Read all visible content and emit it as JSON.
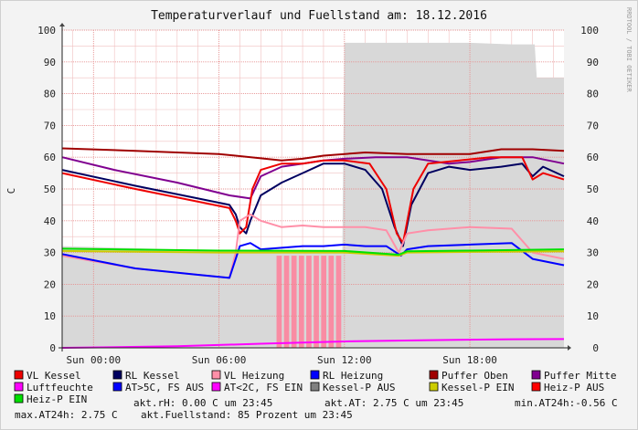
{
  "chart_data": {
    "type": "line",
    "title": "Temperaturverlauf und Fuellstand am: 18.12.2016",
    "ylabel": "C",
    "ylim": [
      0,
      100
    ],
    "yticks": [
      0,
      10,
      20,
      30,
      40,
      50,
      60,
      70,
      80,
      90,
      100
    ],
    "right_yticks": [
      0,
      10,
      20,
      30,
      40,
      50,
      60,
      70,
      80,
      90,
      100
    ],
    "xlim": [
      -1.5,
      22.5
    ],
    "xticks": [
      {
        "at": 0,
        "label": "Sun 00:00"
      },
      {
        "at": 6,
        "label": "Sun 06:00"
      },
      {
        "at": 12,
        "label": "Sun 12:00"
      },
      {
        "at": 18,
        "label": "Sun 18:00"
      }
    ],
    "side_label": "RRDTOOL / TOBI OETIKER",
    "grid": true,
    "fuellstand_area": {
      "name": "akt.Fuellstand",
      "color": "#d8d8d8",
      "points": [
        [
          -1.5,
          32
        ],
        [
          4,
          31
        ],
        [
          6.5,
          30
        ],
        [
          10,
          30
        ],
        [
          11.9,
          30
        ],
        [
          12,
          96
        ],
        [
          14,
          96
        ],
        [
          16,
          96
        ],
        [
          18,
          96
        ],
        [
          20,
          95.5
        ],
        [
          21.1,
          95.5
        ],
        [
          21.2,
          85
        ],
        [
          22.5,
          85
        ]
      ]
    },
    "kessel_pulses": {
      "color": "#ff7f9a",
      "start": 8.7,
      "end": 11.9,
      "top": 29,
      "count": 9
    },
    "series": [
      {
        "name": "Puffer Oben",
        "color": "#a00000",
        "points": [
          [
            -1.5,
            62.8
          ],
          [
            2,
            62
          ],
          [
            6,
            61
          ],
          [
            9,
            59
          ],
          [
            10,
            59.5
          ],
          [
            11,
            60.5
          ],
          [
            13,
            61.5
          ],
          [
            15,
            61
          ],
          [
            18,
            61
          ],
          [
            19.5,
            62.5
          ],
          [
            21,
            62.5
          ],
          [
            22.5,
            62
          ]
        ]
      },
      {
        "name": "Puffer Mitte",
        "color": "#800090",
        "points": [
          [
            -1.5,
            60
          ],
          [
            1,
            56
          ],
          [
            4,
            52
          ],
          [
            6.5,
            48
          ],
          [
            7.5,
            47
          ],
          [
            8,
            54
          ],
          [
            9,
            57
          ],
          [
            10,
            58
          ],
          [
            11,
            59
          ],
          [
            12,
            59.5
          ],
          [
            13.5,
            60
          ],
          [
            15,
            60
          ],
          [
            16,
            59
          ],
          [
            17,
            58
          ],
          [
            18,
            58.5
          ],
          [
            19.5,
            60
          ],
          [
            21,
            60
          ],
          [
            22.5,
            58
          ]
        ]
      },
      {
        "name": "RL Kessel",
        "color": "#000060",
        "points": [
          [
            -1.5,
            56
          ],
          [
            2,
            51
          ],
          [
            5,
            47
          ],
          [
            6.5,
            45
          ],
          [
            6.8,
            42
          ],
          [
            7,
            38
          ],
          [
            7.3,
            36
          ],
          [
            7.5,
            40
          ],
          [
            8,
            48
          ],
          [
            9,
            52
          ],
          [
            10,
            55
          ],
          [
            11,
            58
          ],
          [
            12,
            58
          ],
          [
            13,
            56
          ],
          [
            13.8,
            50
          ],
          [
            14.4,
            38
          ],
          [
            14.8,
            32
          ],
          [
            15.2,
            45
          ],
          [
            16,
            55
          ],
          [
            17,
            57
          ],
          [
            18,
            56
          ],
          [
            19.5,
            57
          ],
          [
            20.5,
            58
          ],
          [
            21,
            54
          ],
          [
            21.5,
            57
          ],
          [
            22.5,
            54
          ]
        ]
      },
      {
        "name": "VL Kessel",
        "color": "#ee0000",
        "points": [
          [
            -1.5,
            55
          ],
          [
            2,
            50
          ],
          [
            5,
            46
          ],
          [
            6.5,
            44
          ],
          [
            6.8,
            40
          ],
          [
            7,
            36
          ],
          [
            7.3,
            38
          ],
          [
            7.6,
            50
          ],
          [
            8,
            56
          ],
          [
            9,
            58
          ],
          [
            10,
            58
          ],
          [
            11,
            59
          ],
          [
            12,
            59
          ],
          [
            13.2,
            58
          ],
          [
            14,
            50
          ],
          [
            14.5,
            36
          ],
          [
            14.8,
            33
          ],
          [
            15.3,
            50
          ],
          [
            16,
            58
          ],
          [
            17.5,
            59
          ],
          [
            19,
            60
          ],
          [
            20.5,
            60
          ],
          [
            21,
            53
          ],
          [
            21.5,
            55
          ],
          [
            22.5,
            53
          ]
        ]
      },
      {
        "name": "VL Heizung",
        "color": "#ff8fa8",
        "points": [
          [
            -1.5,
            29
          ],
          [
            2,
            25
          ],
          [
            5,
            23
          ],
          [
            6.5,
            22
          ],
          [
            6.8,
            30
          ],
          [
            7,
            40
          ],
          [
            7.5,
            42
          ],
          [
            8,
            40
          ],
          [
            9,
            38
          ],
          [
            10,
            38.5
          ],
          [
            11,
            38
          ],
          [
            12,
            38
          ],
          [
            13,
            38
          ],
          [
            14,
            37
          ],
          [
            14.6,
            30
          ],
          [
            15,
            36
          ],
          [
            16,
            37
          ],
          [
            18,
            38
          ],
          [
            20,
            37.5
          ],
          [
            21,
            30
          ],
          [
            22.5,
            28
          ]
        ]
      },
      {
        "name": "RL Heizung",
        "color": "#0000ff",
        "points": [
          [
            -1.5,
            29.5
          ],
          [
            2,
            25
          ],
          [
            5,
            23
          ],
          [
            6.5,
            22
          ],
          [
            6.8,
            28
          ],
          [
            7,
            32
          ],
          [
            7.5,
            33
          ],
          [
            8,
            31
          ],
          [
            9,
            31.5
          ],
          [
            10,
            32
          ],
          [
            11,
            32
          ],
          [
            12,
            32.5
          ],
          [
            13,
            32
          ],
          [
            14,
            32
          ],
          [
            14.7,
            29
          ],
          [
            15,
            31
          ],
          [
            16,
            32
          ],
          [
            18,
            32.5
          ],
          [
            20,
            33
          ],
          [
            21,
            28
          ],
          [
            22.5,
            26
          ]
        ]
      },
      {
        "name": "Kessel-P EIN",
        "color": "#cccc00",
        "points": [
          [
            -1.5,
            30.5
          ],
          [
            6,
            30
          ],
          [
            12,
            30
          ],
          [
            14.6,
            29
          ],
          [
            15,
            30
          ],
          [
            18,
            30.2
          ],
          [
            22.5,
            30.4
          ]
        ]
      },
      {
        "name": "Heiz-P EIN",
        "color": "#00e000",
        "points": [
          [
            -1.5,
            31.2
          ],
          [
            6,
            30.6
          ],
          [
            12,
            30.5
          ],
          [
            14.6,
            29.3
          ],
          [
            15,
            30.4
          ],
          [
            18,
            30.6
          ],
          [
            22.5,
            31
          ]
        ]
      },
      {
        "name": "Luftfeuchte",
        "color": "#ff00ff",
        "points": [
          [
            -1.5,
            0
          ],
          [
            4,
            0.5
          ],
          [
            8,
            1.3
          ],
          [
            12,
            2
          ],
          [
            16,
            2.4
          ],
          [
            20,
            2.7
          ],
          [
            22.5,
            2.75
          ]
        ]
      }
    ],
    "legend": [
      {
        "label": "VL Kessel",
        "color": "#ee0000"
      },
      {
        "label": "RL Kessel",
        "color": "#000060"
      },
      {
        "label": "VL Heizung",
        "color": "#ff8fa8"
      },
      {
        "label": "RL Heizung",
        "color": "#0000ff"
      },
      {
        "label": "Puffer Oben",
        "color": "#a00000"
      },
      {
        "label": "Puffer Mitte",
        "color": "#800090"
      },
      {
        "label": "Luftfeuchte",
        "color": "#ff00ff"
      },
      {
        "label": "AT>5C, FS AUS",
        "color": "#0000ff"
      },
      {
        "label": "AT<2C, FS EIN",
        "color": "#ff00ff"
      },
      {
        "label": "Kessel-P AUS",
        "color": "#808080"
      },
      {
        "label": "Kessel-P EIN",
        "color": "#cccc00"
      },
      {
        "label": "Heiz-P AUS",
        "color": "#ff0000"
      },
      {
        "label": "Heiz-P EIN",
        "color": "#00e000"
      }
    ],
    "stats": [
      "akt.rH: 0.00 C um 23:45",
      "akt.AT: 2.75 C um 23:45",
      "min.AT24h:-0.56 C",
      "max.AT24h: 2.75 C",
      "akt.Fuellstand:   85 Prozent um 23:45"
    ]
  }
}
